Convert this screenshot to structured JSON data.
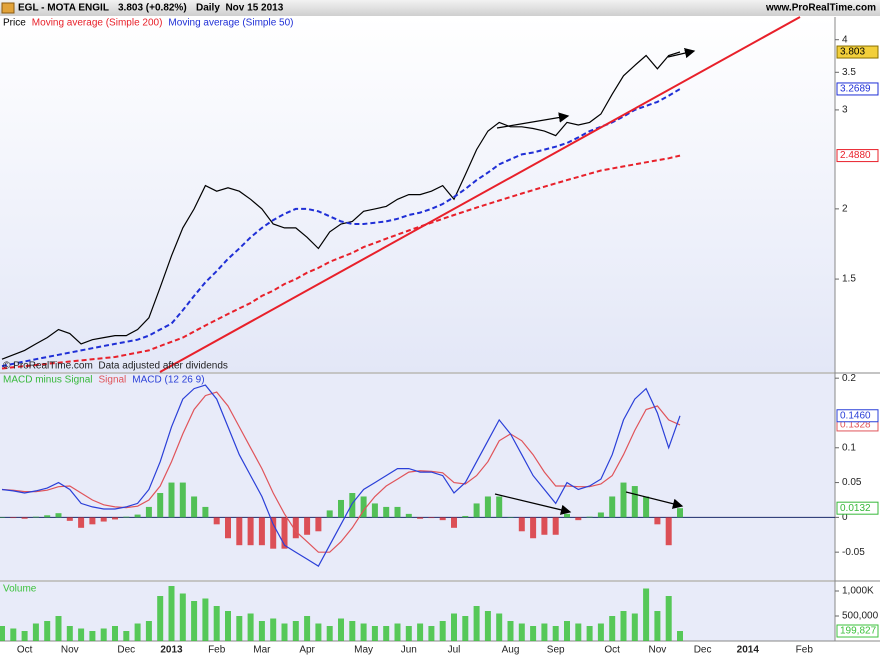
{
  "header": {
    "title": "EGL - MOTA ENGIL",
    "quote": "3.803 (+0.82%)",
    "period": "Daily  Nov 15 2013",
    "source": "www.ProRealTime.com"
  },
  "chart_data": [
    {
      "type": "line",
      "log_scale": true,
      "note": "© ProRealTime.com  Data adjusted after dividends",
      "ylim": [
        1.025,
        4.39
      ],
      "yticks": [
        1.5,
        2,
        3,
        3.5,
        4
      ],
      "series": [
        {
          "name": "Price",
          "color": "#000000",
          "style": "solid",
          "label_fill": "#f2cf3b",
          "values": [
            1.08,
            1.1,
            1.12,
            1.15,
            1.18,
            1.22,
            1.2,
            1.15,
            1.17,
            1.18,
            1.19,
            1.19,
            1.22,
            1.28,
            1.45,
            1.65,
            1.85,
            2.0,
            2.2,
            2.15,
            2.18,
            2.15,
            2.08,
            2.0,
            1.88,
            1.85,
            1.85,
            1.78,
            1.7,
            1.82,
            1.88,
            1.9,
            1.98,
            2.0,
            2.02,
            2.08,
            2.12,
            2.12,
            2.15,
            2.2,
            2.08,
            2.3,
            2.55,
            2.75,
            2.85,
            2.8,
            2.8,
            2.78,
            2.75,
            2.7,
            2.85,
            2.82,
            2.85,
            2.95,
            3.2,
            3.45,
            3.6,
            3.75,
            3.55,
            3.75,
            3.803,
            null,
            null,
            null,
            null,
            null,
            null,
            null,
            null,
            null,
            null,
            null,
            null,
            null
          ]
        },
        {
          "name": "Moving average (Simple 200)",
          "color": "#e8202a",
          "style": "dashed",
          "values": [
            1.04,
            1.045,
            1.05,
            1.055,
            1.06,
            1.065,
            1.07,
            1.075,
            1.08,
            1.085,
            1.09,
            1.1,
            1.11,
            1.12,
            1.14,
            1.16,
            1.18,
            1.21,
            1.24,
            1.27,
            1.3,
            1.33,
            1.36,
            1.4,
            1.43,
            1.47,
            1.5,
            1.54,
            1.57,
            1.61,
            1.64,
            1.67,
            1.71,
            1.74,
            1.77,
            1.8,
            1.83,
            1.86,
            1.89,
            1.92,
            1.95,
            1.98,
            2.01,
            2.04,
            2.07,
            2.1,
            2.13,
            2.16,
            2.19,
            2.22,
            2.25,
            2.28,
            2.31,
            2.34,
            2.36,
            2.38,
            2.4,
            2.42,
            2.44,
            2.46,
            2.488,
            null,
            null,
            null,
            null,
            null,
            null,
            null,
            null,
            null,
            null,
            null,
            null,
            null
          ],
          "value_labels": [
            null,
            null,
            null,
            null,
            null,
            null,
            null,
            null,
            null,
            null,
            null,
            null,
            null,
            null,
            null,
            null,
            null,
            null,
            null,
            null,
            null,
            null,
            null,
            null,
            null,
            null,
            null,
            null,
            null,
            null,
            null,
            null,
            null,
            null,
            null,
            null,
            null,
            null,
            null,
            null,
            null,
            null,
            null,
            null,
            null,
            null,
            null,
            null,
            null,
            null,
            null,
            null,
            null,
            null,
            null,
            null,
            null,
            null,
            null,
            null,
            "2.4880",
            null,
            null,
            null,
            null,
            null,
            null,
            null,
            null,
            null,
            null,
            null,
            null,
            null
          ]
        },
        {
          "name": "Moving average (Simple 50)",
          "color": "#1f2fd6",
          "style": "dashed",
          "values": [
            1.05,
            1.06,
            1.07,
            1.08,
            1.09,
            1.1,
            1.11,
            1.12,
            1.13,
            1.14,
            1.15,
            1.16,
            1.17,
            1.19,
            1.22,
            1.25,
            1.32,
            1.4,
            1.48,
            1.55,
            1.63,
            1.7,
            1.78,
            1.85,
            1.91,
            1.96,
            2.0,
            2.0,
            1.98,
            1.94,
            1.9,
            1.88,
            1.88,
            1.89,
            1.9,
            1.92,
            1.95,
            1.97,
            2.0,
            2.04,
            2.1,
            2.17,
            2.25,
            2.32,
            2.4,
            2.45,
            2.5,
            2.52,
            2.55,
            2.58,
            2.62,
            2.68,
            2.75,
            2.8,
            2.85,
            2.92,
            3.0,
            3.05,
            3.1,
            3.18,
            3.2689,
            null,
            null,
            null,
            null,
            null,
            null,
            null,
            null,
            null,
            null,
            null,
            null,
            null
          ]
        }
      ]
    },
    {
      "type": "line",
      "log_scale": false,
      "zero_line": true,
      "ylim": [
        -0.09,
        0.206
      ],
      "yticks": [
        -0.05,
        0,
        0.05,
        0.1,
        0.2
      ],
      "series": [
        {
          "name": "MACD minus Signal",
          "type": "bar",
          "color": "#37b83a",
          "negative_color": "#d9343a",
          "values": [
            0,
            -0.001,
            -0.002,
            0.001,
            0.003,
            0.006,
            -0.005,
            -0.015,
            -0.01,
            -0.006,
            -0.003,
            0.001,
            0.004,
            0.015,
            0.035,
            0.05,
            0.05,
            0.03,
            0.015,
            -0.01,
            -0.03,
            -0.04,
            -0.04,
            -0.04,
            -0.045,
            -0.045,
            -0.03,
            -0.025,
            -0.02,
            0.01,
            0.025,
            0.035,
            0.03,
            0.02,
            0.015,
            0.015,
            0.005,
            -0.002,
            -0.001,
            -0.004,
            -0.015,
            0.002,
            0.02,
            0.03,
            0.03,
            0,
            -0.02,
            -0.03,
            -0.025,
            -0.025,
            0.005,
            -0.004,
            0.001,
            0.007,
            0.03,
            0.05,
            0.045,
            0.03,
            -0.01,
            -0.04,
            0.0132,
            null,
            null,
            null,
            null,
            null,
            null,
            null,
            null,
            null,
            null,
            null,
            null,
            null
          ]
        },
        {
          "name": "Signal",
          "color": "#e0545a",
          "style": "solid",
          "values": [
            0.04,
            0.039,
            0.037,
            0.037,
            0.039,
            0.044,
            0.045,
            0.035,
            0.025,
            0.018,
            0.015,
            0.014,
            0.016,
            0.025,
            0.045,
            0.08,
            0.12,
            0.155,
            0.175,
            0.18,
            0.16,
            0.13,
            0.1,
            0.07,
            0.035,
            0.005,
            -0.02,
            -0.035,
            -0.05,
            -0.05,
            -0.035,
            -0.015,
            0.01,
            0.03,
            0.045,
            0.055,
            0.065,
            0.067,
            0.066,
            0.064,
            0.05,
            0.048,
            0.06,
            0.08,
            0.11,
            0.12,
            0.11,
            0.09,
            0.065,
            0.045,
            0.045,
            0.044,
            0.044,
            0.048,
            0.06,
            0.09,
            0.125,
            0.155,
            0.16,
            0.14,
            0.1328,
            null,
            null,
            null,
            null,
            null,
            null,
            null,
            null,
            null,
            null,
            null,
            null,
            null
          ]
        },
        {
          "name": "MACD (12 26 9)",
          "color": "#2a3fd8",
          "style": "solid",
          "values": [
            0.04,
            0.038,
            0.035,
            0.038,
            0.042,
            0.05,
            0.04,
            0.02,
            0.015,
            0.012,
            0.012,
            0.015,
            0.02,
            0.04,
            0.08,
            0.13,
            0.17,
            0.185,
            0.19,
            0.17,
            0.13,
            0.09,
            0.06,
            0.03,
            -0.01,
            -0.04,
            -0.05,
            -0.06,
            -0.07,
            -0.04,
            -0.01,
            0.02,
            0.04,
            0.05,
            0.06,
            0.07,
            0.07,
            0.065,
            0.065,
            0.06,
            0.035,
            0.05,
            0.08,
            0.11,
            0.14,
            0.12,
            0.09,
            0.06,
            0.04,
            0.02,
            0.05,
            0.04,
            0.045,
            0.055,
            0.09,
            0.14,
            0.17,
            0.185,
            0.15,
            0.1,
            0.146,
            null,
            null,
            null,
            null,
            null,
            null,
            null,
            null,
            null,
            null,
            null,
            null,
            null
          ],
          "value_labels": [
            null,
            null,
            null,
            null,
            null,
            null,
            null,
            null,
            null,
            null,
            null,
            null,
            null,
            null,
            null,
            null,
            null,
            null,
            null,
            null,
            null,
            null,
            null,
            null,
            null,
            null,
            null,
            null,
            null,
            null,
            null,
            null,
            null,
            null,
            null,
            null,
            null,
            null,
            null,
            null,
            null,
            null,
            null,
            null,
            null,
            null,
            null,
            null,
            null,
            null,
            null,
            null,
            null,
            null,
            null,
            null,
            null,
            null,
            null,
            null,
            "0.1460",
            null,
            null,
            null,
            null,
            null,
            null,
            null,
            null,
            null,
            null,
            null,
            null,
            null
          ]
        }
      ]
    },
    {
      "type": "bar",
      "log_scale": false,
      "ylim": [
        0,
        1180000
      ],
      "yticks": [
        {
          "value": 500000,
          "label": "500,000"
        },
        {
          "value": 1000000,
          "label": "1,000K"
        }
      ],
      "categories": [
        null,
        null,
        "Oct",
        null,
        null,
        null,
        "Nov",
        null,
        null,
        null,
        null,
        "Dec",
        null,
        null,
        null,
        "2013",
        null,
        null,
        null,
        "Feb",
        null,
        null,
        null,
        "Mar",
        null,
        null,
        null,
        "Apr",
        null,
        null,
        null,
        null,
        "May",
        null,
        null,
        null,
        "Jun",
        null,
        null,
        null,
        "Jul",
        null,
        null,
        null,
        null,
        "Aug",
        null,
        null,
        null,
        "Sep",
        null,
        null,
        null,
        null,
        "Oct",
        null,
        null,
        null,
        "Nov",
        null,
        null,
        null,
        "Dec",
        null,
        null,
        null,
        "2014",
        null,
        null,
        null,
        null,
        "Feb",
        null,
        null
      ],
      "series": [
        {
          "name": "Volume",
          "color": "#3cc23c",
          "values": [
            300000,
            250000,
            200000,
            350000,
            400000,
            500000,
            300000,
            250000,
            200000,
            250000,
            300000,
            200000,
            350000,
            400000,
            900000,
            1100000,
            950000,
            800000,
            850000,
            700000,
            600000,
            500000,
            550000,
            400000,
            450000,
            350000,
            400000,
            500000,
            350000,
            300000,
            450000,
            400000,
            350000,
            300000,
            300000,
            350000,
            300000,
            350000,
            300000,
            400000,
            550000,
            500000,
            700000,
            600000,
            550000,
            400000,
            350000,
            300000,
            350000,
            300000,
            400000,
            350000,
            300000,
            350000,
            500000,
            600000,
            550000,
            1050000,
            600000,
            900000,
            199827,
            null,
            null,
            null,
            null,
            null,
            null,
            null,
            null,
            null,
            null,
            null,
            null,
            null
          ],
          "value_labels": [
            null,
            null,
            null,
            null,
            null,
            null,
            null,
            null,
            null,
            null,
            null,
            null,
            null,
            null,
            null,
            null,
            null,
            null,
            null,
            null,
            null,
            null,
            null,
            null,
            null,
            null,
            null,
            null,
            null,
            null,
            null,
            null,
            null,
            null,
            null,
            null,
            null,
            null,
            null,
            null,
            null,
            null,
            null,
            null,
            null,
            null,
            null,
            null,
            null,
            null,
            null,
            null,
            null,
            null,
            null,
            null,
            null,
            null,
            null,
            null,
            "199,827",
            null,
            null,
            null,
            null,
            null,
            null,
            null,
            null,
            null,
            null,
            null,
            null,
            null
          ]
        }
      ]
    }
  ]
}
